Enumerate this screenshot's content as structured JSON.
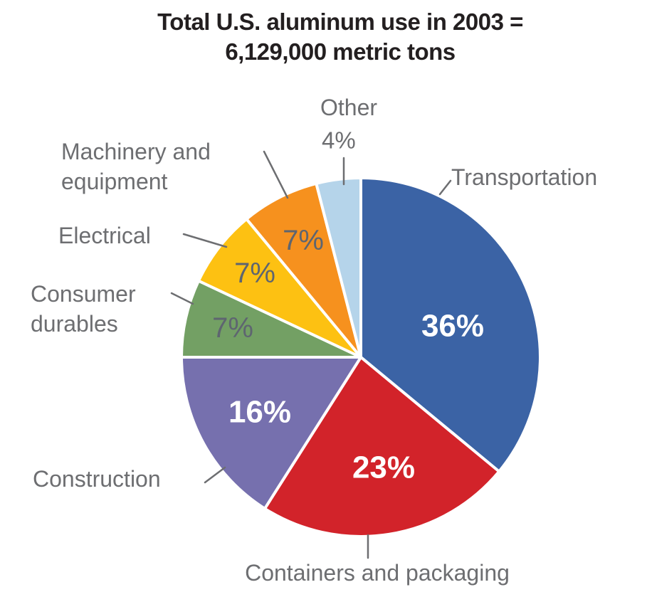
{
  "title": {
    "line1": "Total U.S. aluminum use in 2003 =",
    "line2": "6,129,000 metric tons"
  },
  "chart_data": {
    "type": "pie",
    "title": "Total U.S. aluminum use in 2003 = 6,129,000 metric tons",
    "total_label": "6,129,000 metric tons",
    "year": "2003",
    "unit": "percent of total",
    "direction": "clockwise",
    "start_angle_deg": 0,
    "legend_position": "outside labels with leader lines",
    "categories": [
      "Transportation",
      "Containers and packaging",
      "Construction",
      "Consumer durables",
      "Electrical",
      "Machinery and equipment",
      "Other"
    ],
    "values": [
      36,
      23,
      16,
      7,
      7,
      7,
      4
    ],
    "slices": [
      {
        "label": "Transportation",
        "value": 36,
        "pct_text": "36%",
        "color": "#3B63A5",
        "value_label_color": "#FFFFFF"
      },
      {
        "label": "Containers and packaging",
        "value": 23,
        "pct_text": "23%",
        "color": "#D2232A",
        "value_label_color": "#FFFFFF"
      },
      {
        "label": "Construction",
        "value": 16,
        "pct_text": "16%",
        "color": "#7670AE",
        "value_label_color": "#FFFFFF"
      },
      {
        "label": "Consumer durables",
        "value": 7,
        "pct_text": "7%",
        "color": "#73A064",
        "value_label_color": "#5E6570"
      },
      {
        "label": "Electrical",
        "value": 7,
        "pct_text": "7%",
        "color": "#FDC112",
        "value_label_color": "#5E6570"
      },
      {
        "label": "Machinery and equipment",
        "value": 7,
        "pct_text": "7%",
        "color": "#F6911E",
        "value_label_color": "#5E6570"
      },
      {
        "label": "Other",
        "value": 4,
        "pct_text": "4%",
        "color": "#B5D4EA",
        "value_label_color": "#6D6E71"
      }
    ]
  },
  "colors": {
    "background": "#FFFFFF",
    "title_text": "#231F20",
    "category_label": "#6D6E71",
    "leader_line": "#6D6E71",
    "slice_separator": "#FFFFFF"
  }
}
